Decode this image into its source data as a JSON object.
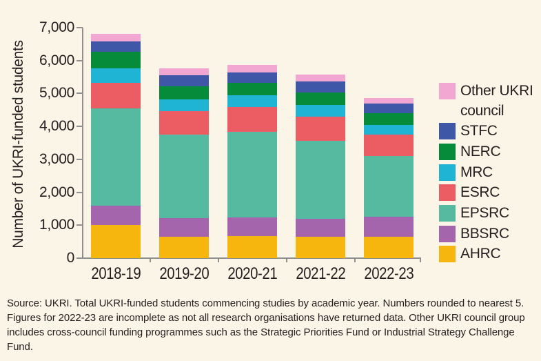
{
  "figure": {
    "background": "#FBF5E7",
    "text_color": "#231F20",
    "axis_color": "#8f8f8f",
    "y_axis_title": "Number of UKRI-funded students",
    "source_note": "Source: UKRI. Total UKRI-funded students commencing studies by academic year. Numbers rounded to nearest 5. Figures for 2022-23 are incomplete as not all research organisations have returned data. Other UKRI council group includes cross-council funding programmes such as the Strategic Priorities Fund or Industrial Strategy Challenge Fund."
  },
  "chart_data": {
    "type": "bar",
    "stacked": true,
    "title": "",
    "xlabel": "",
    "ylabel": "Number of UKRI-funded students",
    "ylim": [
      0,
      7000
    ],
    "ytick_step": 1000,
    "ytick_labels": [
      "0",
      "1,000",
      "2,000",
      "3,000",
      "4,000",
      "5,000",
      "6,000",
      "7,000"
    ],
    "grid": false,
    "legend_position": "right",
    "categories": [
      "2018-19",
      "2019-20",
      "2020-21",
      "2021-22",
      "2022-23"
    ],
    "series": [
      {
        "name": "AHRC",
        "color": "#F6B60D",
        "values": [
          1000,
          660,
          680,
          650,
          650
        ]
      },
      {
        "name": "BBSRC",
        "color": "#A565AC",
        "values": [
          600,
          560,
          560,
          535,
          600
        ]
      },
      {
        "name": "EPSRC",
        "color": "#55BAA0",
        "values": [
          2945,
          2540,
          2605,
          2380,
          1860
        ]
      },
      {
        "name": "ESRC",
        "color": "#EB5C63",
        "values": [
          770,
          700,
          735,
          735,
          650
        ]
      },
      {
        "name": "MRC",
        "color": "#20B4D4",
        "values": [
          445,
          365,
          370,
          350,
          295
        ]
      },
      {
        "name": "NERC",
        "color": "#068B3B",
        "values": [
          500,
          400,
          380,
          385,
          350
        ]
      },
      {
        "name": "STFC",
        "color": "#3F57A7",
        "values": [
          330,
          335,
          300,
          335,
          280
        ]
      },
      {
        "name": "Other UKRI council",
        "color": "#F2A7D3",
        "values": [
          230,
          210,
          230,
          210,
          175
        ]
      }
    ],
    "totals": [
      6820,
      5770,
      5860,
      5580,
      4860
    ],
    "legend_order": [
      "Other UKRI council",
      "STFC",
      "NERC",
      "MRC",
      "ESRC",
      "EPSRC",
      "BBSRC",
      "AHRC"
    ]
  }
}
